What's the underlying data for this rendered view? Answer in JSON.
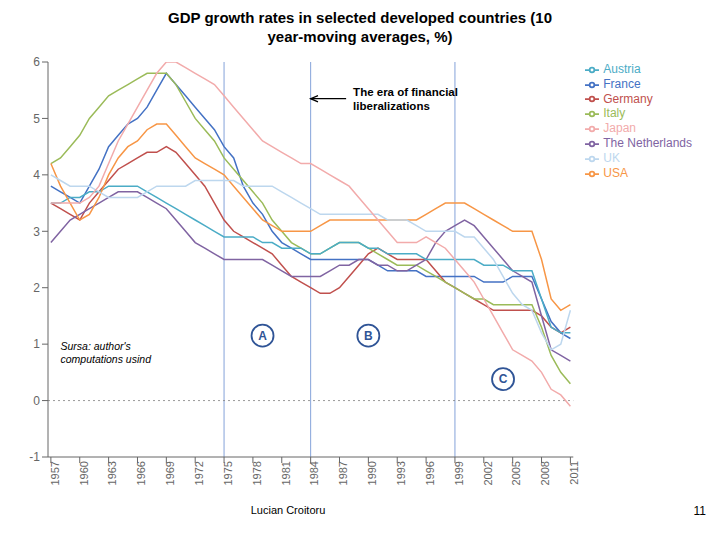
{
  "chart_data": {
    "type": "line",
    "title": "GDP growth rates in selected developed countries (10\nyear-moving averages, %)",
    "xlabel": "Lucian Croitoru",
    "x": [
      1957,
      1958,
      1959,
      1960,
      1961,
      1962,
      1963,
      1964,
      1965,
      1966,
      1967,
      1968,
      1969,
      1970,
      1971,
      1972,
      1973,
      1974,
      1975,
      1976,
      1977,
      1978,
      1979,
      1980,
      1981,
      1982,
      1983,
      1984,
      1985,
      1986,
      1987,
      1988,
      1989,
      1990,
      1991,
      1992,
      1993,
      1994,
      1995,
      1996,
      1997,
      1998,
      1999,
      2000,
      2001,
      2002,
      2003,
      2004,
      2005,
      2006,
      2007,
      2008,
      2009,
      2010,
      2011
    ],
    "series": [
      {
        "name": "France",
        "color": "#4472C4",
        "values": [
          3.8,
          3.7,
          3.6,
          3.5,
          3.8,
          4.1,
          4.5,
          4.7,
          4.9,
          5.0,
          5.2,
          5.5,
          5.8,
          5.6,
          5.4,
          5.2,
          5.0,
          4.8,
          4.5,
          4.3,
          3.8,
          3.5,
          3.3,
          3.0,
          2.8,
          2.7,
          2.6,
          2.5,
          2.5,
          2.5,
          2.5,
          2.5,
          2.5,
          2.5,
          2.4,
          2.3,
          2.3,
          2.3,
          2.3,
          2.2,
          2.2,
          2.2,
          2.2,
          2.2,
          2.2,
          2.1,
          2.1,
          2.1,
          2.2,
          2.2,
          2.2,
          1.8,
          1.4,
          1.2,
          1.1
        ]
      },
      {
        "name": "Germany",
        "color": "#C0504D",
        "values": [
          3.5,
          3.4,
          3.3,
          3.2,
          3.5,
          3.7,
          3.9,
          4.1,
          4.2,
          4.3,
          4.4,
          4.4,
          4.5,
          4.4,
          4.2,
          4.0,
          3.8,
          3.5,
          3.2,
          3.0,
          2.9,
          2.8,
          2.7,
          2.6,
          2.4,
          2.2,
          2.1,
          2.0,
          1.9,
          1.9,
          2.0,
          2.2,
          2.4,
          2.6,
          2.7,
          2.6,
          2.5,
          2.5,
          2.5,
          2.5,
          2.3,
          2.1,
          2.0,
          1.9,
          1.8,
          1.7,
          1.6,
          1.6,
          1.6,
          1.6,
          1.6,
          1.5,
          1.3,
          1.2,
          1.3
        ]
      },
      {
        "name": "Italy",
        "color": "#9BBB59",
        "values": [
          4.2,
          4.3,
          4.5,
          4.7,
          5.0,
          5.2,
          5.4,
          5.5,
          5.6,
          5.7,
          5.8,
          5.8,
          5.8,
          5.6,
          5.3,
          5.0,
          4.8,
          4.6,
          4.3,
          4.1,
          3.9,
          3.7,
          3.5,
          3.2,
          3.0,
          2.8,
          2.7,
          2.6,
          2.6,
          2.7,
          2.8,
          2.8,
          2.8,
          2.7,
          2.6,
          2.5,
          2.4,
          2.4,
          2.4,
          2.3,
          2.2,
          2.1,
          2.0,
          1.9,
          1.8,
          1.8,
          1.7,
          1.7,
          1.7,
          1.7,
          1.7,
          1.3,
          0.8,
          0.5,
          0.3
        ]
      },
      {
        "name": "The Netherlands",
        "color": "#8064A2",
        "values": [
          2.8,
          3.0,
          3.2,
          3.3,
          3.4,
          3.5,
          3.6,
          3.7,
          3.7,
          3.7,
          3.6,
          3.5,
          3.4,
          3.2,
          3.0,
          2.8,
          2.7,
          2.6,
          2.5,
          2.5,
          2.5,
          2.5,
          2.5,
          2.4,
          2.3,
          2.2,
          2.2,
          2.2,
          2.2,
          2.3,
          2.4,
          2.4,
          2.5,
          2.5,
          2.4,
          2.4,
          2.3,
          2.3,
          2.4,
          2.5,
          2.8,
          3.0,
          3.1,
          3.2,
          3.1,
          2.9,
          2.7,
          2.5,
          2.3,
          2.2,
          2.1,
          1.5,
          0.9,
          0.8,
          0.7
        ]
      },
      {
        "name": "Austria",
        "color": "#4BACC6",
        "values": [
          3.5,
          3.5,
          3.6,
          3.6,
          3.7,
          3.7,
          3.8,
          3.8,
          3.8,
          3.8,
          3.7,
          3.6,
          3.5,
          3.4,
          3.3,
          3.2,
          3.1,
          3.0,
          2.9,
          2.9,
          2.9,
          2.9,
          2.8,
          2.8,
          2.7,
          2.7,
          2.7,
          2.6,
          2.6,
          2.7,
          2.8,
          2.8,
          2.8,
          2.7,
          2.7,
          2.6,
          2.6,
          2.6,
          2.6,
          2.5,
          2.5,
          2.5,
          2.5,
          2.5,
          2.5,
          2.4,
          2.4,
          2.4,
          2.3,
          2.3,
          2.3,
          1.8,
          1.3,
          1.2,
          1.2
        ]
      },
      {
        "name": "USA",
        "color": "#F79646",
        "values": [
          4.2,
          3.8,
          3.5,
          3.2,
          3.3,
          3.6,
          4.0,
          4.3,
          4.5,
          4.6,
          4.8,
          4.9,
          4.9,
          4.7,
          4.5,
          4.3,
          4.2,
          4.1,
          4.0,
          3.8,
          3.6,
          3.4,
          3.2,
          3.1,
          3.0,
          3.0,
          3.0,
          3.0,
          3.1,
          3.2,
          3.2,
          3.2,
          3.2,
          3.2,
          3.2,
          3.2,
          3.2,
          3.2,
          3.2,
          3.3,
          3.4,
          3.5,
          3.5,
          3.5,
          3.4,
          3.3,
          3.2,
          3.1,
          3.0,
          3.0,
          3.0,
          2.5,
          1.8,
          1.6,
          1.7
        ]
      },
      {
        "name": "UK",
        "color": "#BDD7EE",
        "values": [
          4.0,
          3.9,
          3.8,
          3.8,
          3.8,
          3.7,
          3.6,
          3.6,
          3.6,
          3.6,
          3.7,
          3.8,
          3.8,
          3.8,
          3.8,
          3.9,
          3.9,
          3.9,
          3.9,
          3.9,
          3.8,
          3.8,
          3.8,
          3.8,
          3.7,
          3.6,
          3.5,
          3.4,
          3.3,
          3.3,
          3.3,
          3.3,
          3.3,
          3.3,
          3.3,
          3.2,
          3.2,
          3.2,
          3.1,
          3.0,
          3.0,
          3.0,
          3.0,
          2.9,
          2.9,
          2.7,
          2.5,
          2.2,
          1.9,
          1.7,
          1.6,
          1.2,
          0.9,
          1.0,
          1.6
        ]
      },
      {
        "name": "Japan",
        "color": "#F2ABAB",
        "values": [
          3.5,
          3.5,
          3.5,
          3.5,
          3.6,
          3.8,
          4.2,
          4.6,
          4.9,
          5.2,
          5.5,
          5.8,
          6.0,
          6.0,
          5.9,
          5.8,
          5.7,
          5.6,
          5.4,
          5.2,
          5.0,
          4.8,
          4.6,
          4.5,
          4.4,
          4.3,
          4.2,
          4.2,
          4.1,
          4.0,
          3.9,
          3.8,
          3.6,
          3.4,
          3.2,
          3.0,
          2.8,
          2.8,
          2.8,
          2.9,
          2.8,
          2.7,
          2.5,
          2.3,
          2.1,
          1.8,
          1.5,
          1.2,
          0.9,
          0.8,
          0.7,
          0.5,
          0.2,
          0.1,
          -0.1
        ]
      }
    ],
    "xlim": [
      1956.7,
      2011.3
    ],
    "xticks": [
      1957,
      1960,
      1963,
      1966,
      1969,
      1972,
      1975,
      1978,
      1981,
      1984,
      1987,
      1990,
      1993,
      1996,
      1999,
      2002,
      2005,
      2008,
      2011
    ],
    "ylim": [
      -1.0,
      6.0
    ],
    "yticks": [
      -1,
      0,
      1,
      2,
      3,
      4,
      5,
      6
    ],
    "grid": false,
    "legend": "right",
    "vlines": {
      "values": [
        1975,
        1984,
        1999
      ],
      "color": "#4472C4"
    },
    "hlines": {
      "values": [
        0
      ],
      "color": "gray",
      "line_style": "dotted"
    },
    "annotations": [
      {
        "text": "The era of financial\nliberalizations",
        "x": 1988,
        "y": 5.35,
        "arrow_x": 1984,
        "arrow_y": 5.35
      },
      {
        "text": "Sursa: author's\ncomputations usind",
        "x": 1958,
        "y": 1.05
      },
      {
        "text": "A",
        "x": 1979,
        "y": 1.15,
        "marker": "circle",
        "color": "#2F5496"
      },
      {
        "text": "B",
        "x": 1990,
        "y": 1.15,
        "marker": "circle",
        "color": "#2F5496"
      },
      {
        "text": "C",
        "x": 2004,
        "y": 0.38,
        "marker": "circle",
        "color": "#2F5496"
      },
      {
        "text": "11"
      }
    ]
  }
}
